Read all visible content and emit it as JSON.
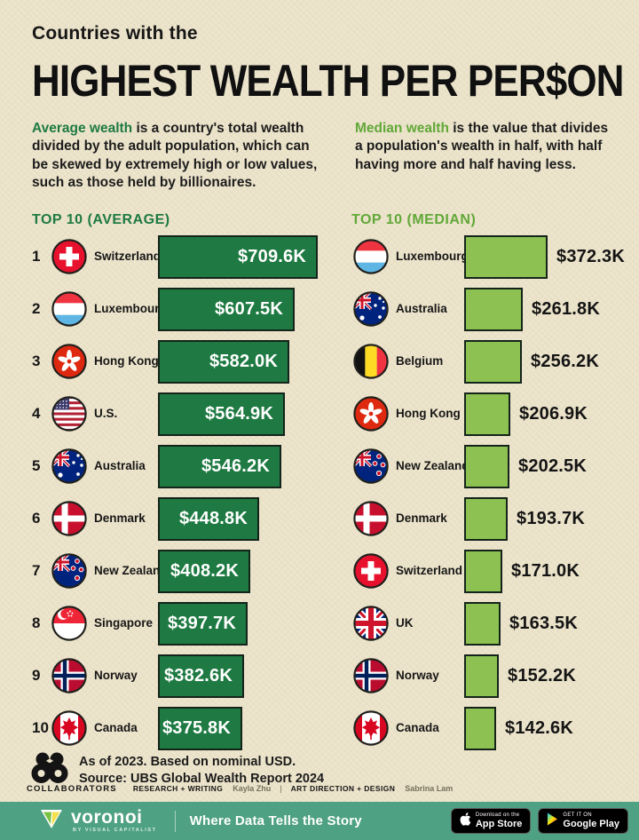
{
  "title": {
    "eyebrow": "Countries with the",
    "main": "HIGHEST WEALTH PER PER$ON"
  },
  "intro": {
    "average": {
      "lead": "Average wealth",
      "rest": " is a country's total wealth divided by the adult population, which can be skewed by extremely high or low values, such as those held by billionaires."
    },
    "median": {
      "lead": "Median wealth",
      "rest": " is the value that divides a population's wealth in half, with half having more and half having less."
    }
  },
  "chart_data": [
    {
      "type": "bar",
      "orientation": "horizontal",
      "title": "TOP 10 (AVERAGE)",
      "unit": "USD thousands per adult, nominal, 2023",
      "bar_color": "#1E7A42",
      "value_label_position": "inside",
      "xlim": [
        0,
        709.6
      ],
      "rows": [
        {
          "rank": "1",
          "country": "Switzerland",
          "flag": "ch",
          "value": 709.6,
          "label": "$709.6K"
        },
        {
          "rank": "2",
          "country": "Luxembourg",
          "flag": "lu",
          "value": 607.5,
          "label": "$607.5K"
        },
        {
          "rank": "3",
          "country": "Hong Kong",
          "flag": "hk",
          "value": 582.0,
          "label": "$582.0K"
        },
        {
          "rank": "4",
          "country": "U.S.",
          "flag": "us",
          "value": 564.9,
          "label": "$564.9K"
        },
        {
          "rank": "5",
          "country": "Australia",
          "flag": "au",
          "value": 546.2,
          "label": "$546.2K"
        },
        {
          "rank": "6",
          "country": "Denmark",
          "flag": "dk",
          "value": 448.8,
          "label": "$448.8K"
        },
        {
          "rank": "7",
          "country": "New Zealand",
          "flag": "nz",
          "value": 408.2,
          "label": "$408.2K"
        },
        {
          "rank": "8",
          "country": "Singapore",
          "flag": "sg",
          "value": 397.7,
          "label": "$397.7K"
        },
        {
          "rank": "9",
          "country": "Norway",
          "flag": "no",
          "value": 382.6,
          "label": "$382.6K"
        },
        {
          "rank": "10",
          "country": "Canada",
          "flag": "ca",
          "value": 375.8,
          "label": "$375.8K"
        }
      ]
    },
    {
      "type": "bar",
      "orientation": "horizontal",
      "title": "TOP 10 (MEDIAN)",
      "unit": "USD thousands per adult, nominal, 2023",
      "bar_color": "#8DC152",
      "value_label_position": "outside",
      "xlim": [
        0,
        709.6
      ],
      "rows": [
        {
          "country": "Luxembourg",
          "flag": "lu",
          "value": 372.3,
          "label": "$372.3K"
        },
        {
          "country": "Australia",
          "flag": "au",
          "value": 261.8,
          "label": "$261.8K"
        },
        {
          "country": "Belgium",
          "flag": "be",
          "value": 256.2,
          "label": "$256.2K"
        },
        {
          "country": "Hong Kong",
          "flag": "hk",
          "value": 206.9,
          "label": "$206.9K"
        },
        {
          "country": "New Zealand",
          "flag": "nz",
          "value": 202.5,
          "label": "$202.5K"
        },
        {
          "country": "Denmark",
          "flag": "dk",
          "value": 193.7,
          "label": "$193.7K"
        },
        {
          "country": "Switzerland",
          "flag": "ch",
          "value": 171.0,
          "label": "$171.0K"
        },
        {
          "country": "UK",
          "flag": "gb",
          "value": 163.5,
          "label": "$163.5K"
        },
        {
          "country": "Norway",
          "flag": "no",
          "value": 152.2,
          "label": "$152.2K"
        },
        {
          "country": "Canada",
          "flag": "ca",
          "value": 142.6,
          "label": "$142.6K"
        }
      ]
    }
  ],
  "note": {
    "line1": "As of 2023. Based on nominal USD.",
    "line2": "Source: UBS Global Wealth Report 2024"
  },
  "collaborators": {
    "label": "COLLABORATORS",
    "role1": "RESEARCH + WRITING",
    "name1": "Kayla Zhu",
    "separator": "|",
    "role2": "ART DIRECTION + DESIGN",
    "name2": "Sabrina Lam"
  },
  "footer": {
    "brand": "voronoi",
    "brand_sub": "BY VISUAL CAPITALIST",
    "tagline": "Where Data Tells the Story",
    "app_store": {
      "top": "Download on the",
      "bottom": "App Store"
    },
    "google_play": {
      "top": "GET IT ON",
      "bottom": "Google Play"
    }
  },
  "colors": {
    "background": "#ECE4CB",
    "bar_dark_green": "#1E7A42",
    "bar_light_green": "#8DC152",
    "header_average": "#1E7A42",
    "header_median": "#61A838",
    "footer_teal": "#4FA183",
    "text": "#161616"
  }
}
